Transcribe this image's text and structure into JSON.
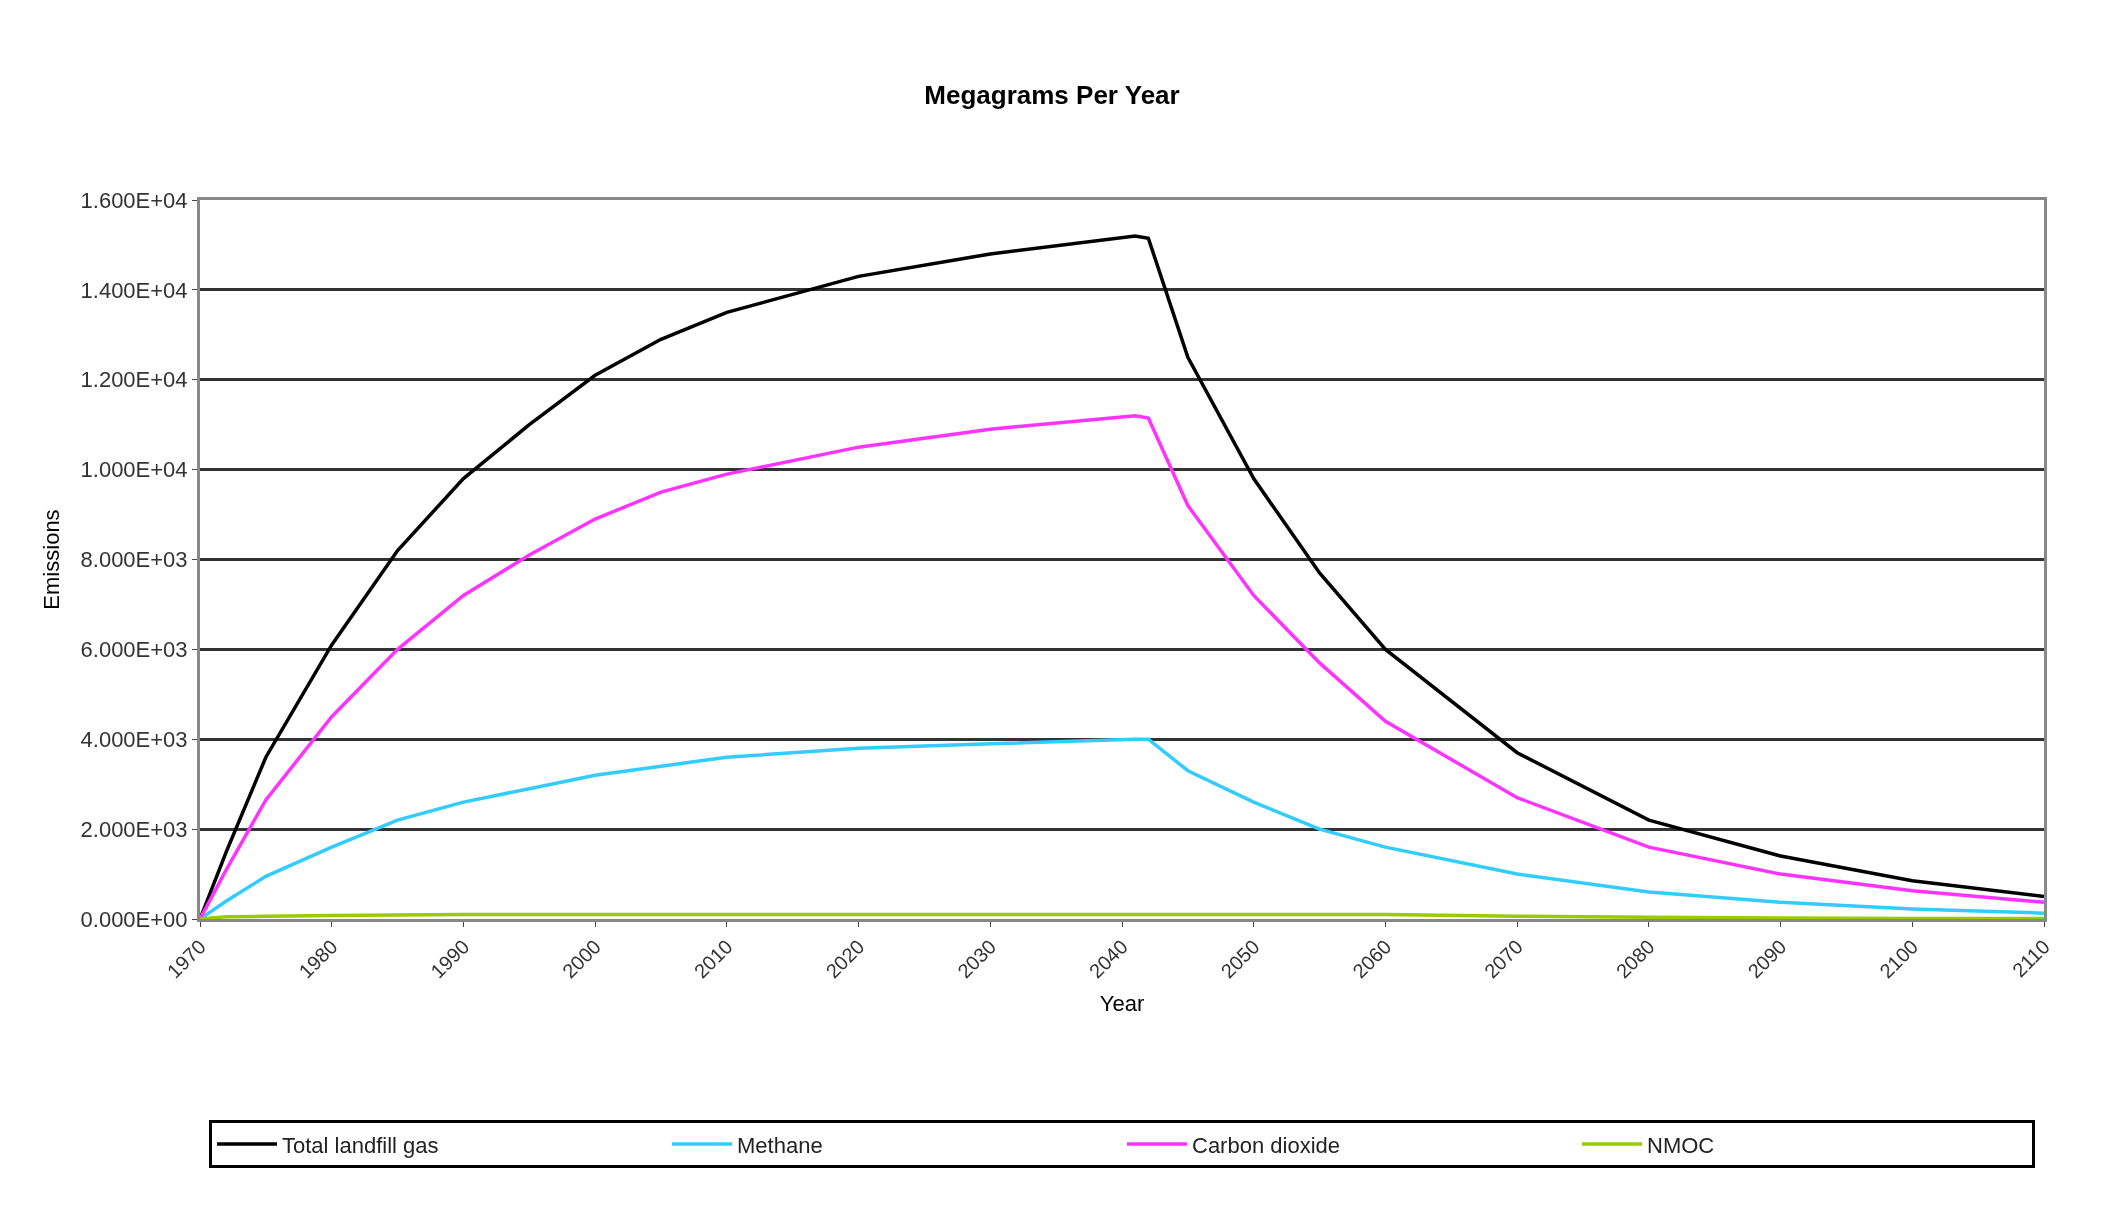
{
  "chart_data": {
    "type": "line",
    "title": "Megagrams Per Year",
    "xlabel": "Year",
    "ylabel": "Emissions",
    "x": [
      1970,
      1972,
      1975,
      1980,
      1985,
      1990,
      1995,
      2000,
      2005,
      2010,
      2020,
      2030,
      2041,
      2042,
      2045,
      2050,
      2055,
      2060,
      2070,
      2080,
      2090,
      2100,
      2110
    ],
    "series": [
      {
        "name": "Total landfill gas",
        "color": "#000000",
        "values": [
          0,
          1500,
          3600,
          6100,
          8200,
          9800,
          11000,
          12100,
          12900,
          13500,
          14300,
          14800,
          15200,
          15150,
          12500,
          9800,
          7700,
          6000,
          3700,
          2200,
          1400,
          850,
          500
        ]
      },
      {
        "name": "Methane",
        "color": "#33ccff",
        "values": [
          0,
          400,
          950,
          1600,
          2200,
          2600,
          2900,
          3200,
          3400,
          3600,
          3800,
          3900,
          4000,
          4000,
          3300,
          2600,
          2000,
          1600,
          1000,
          600,
          370,
          220,
          130
        ]
      },
      {
        "name": "Carbon dioxide",
        "color": "#ff33ff",
        "values": [
          0,
          1100,
          2650,
          4500,
          6000,
          7200,
          8100,
          8900,
          9500,
          9900,
          10500,
          10900,
          11200,
          11150,
          9200,
          7200,
          5700,
          4400,
          2700,
          1600,
          1000,
          630,
          370
        ]
      },
      {
        "name": "NMOC",
        "color": "#99cc00",
        "values": [
          0,
          50,
          60,
          80,
          90,
          100,
          100,
          100,
          100,
          100,
          100,
          100,
          100,
          100,
          100,
          100,
          100,
          100,
          60,
          40,
          20,
          10,
          10
        ]
      }
    ],
    "xlim": [
      1970,
      2110
    ],
    "xticks": [
      1970,
      1980,
      1990,
      2000,
      2010,
      2020,
      2030,
      2040,
      2050,
      2060,
      2070,
      2080,
      2090,
      2100,
      2110
    ],
    "ylim": [
      0,
      16000
    ],
    "yticks": [
      {
        "value": 0,
        "label": "0.000E+00"
      },
      {
        "value": 2000,
        "label": "2.000E+03"
      },
      {
        "value": 4000,
        "label": "4.000E+03"
      },
      {
        "value": 6000,
        "label": "6.000E+03"
      },
      {
        "value": 8000,
        "label": "8.000E+03"
      },
      {
        "value": 10000,
        "label": "1.000E+04"
      },
      {
        "value": 12000,
        "label": "1.200E+04"
      },
      {
        "value": 14000,
        "label": "1.400E+04"
      },
      {
        "value": 16000,
        "label": "1.600E+04"
      }
    ],
    "grid": "y",
    "legend": "bottom",
    "marker": "none",
    "line_style": "solid"
  }
}
